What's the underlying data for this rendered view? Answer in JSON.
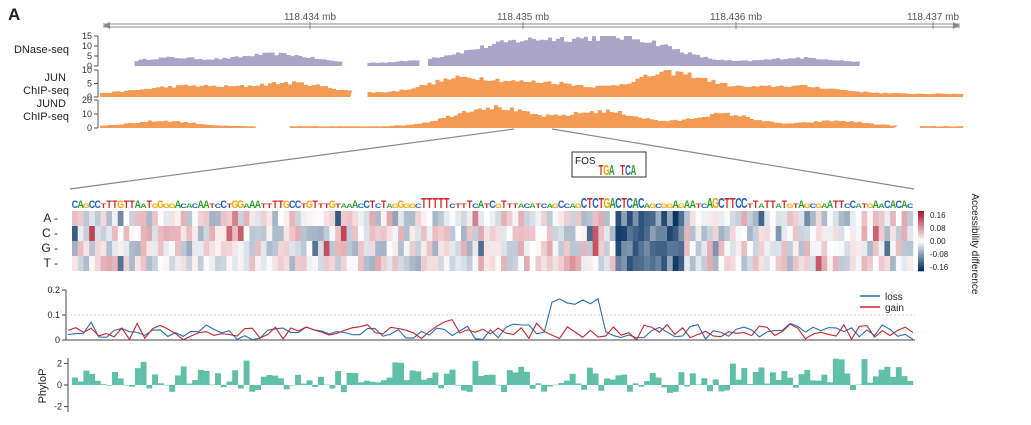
{
  "panel_label": "A",
  "genome_axis": {
    "ticks": [
      "118.434 mb",
      "118.435 mb",
      "118.436 mb",
      "118.437 mb"
    ]
  },
  "motif": {
    "name": "FOS",
    "logo": "TGA TCA"
  },
  "sequence": "CAGCCTTTGTTAATGGGGACACAATCCTGGAAATTTTGCCTGTTTGTAAACCTCTAGGGGCTTTTTCTTTCATCGTTTACATCAGCCAGCTCTGACTCACAGCGGAGAATCAGCTTCCTTATTATGTAGCGAATTCCATGAACACAC",
  "colors": {
    "dnase": "#a9a4c8",
    "chip": "#f39a55",
    "loss": "#2b6cb0",
    "gain": "#c4262e",
    "phylop": "#5fbfa8",
    "A": "#2ca02c",
    "C": "#1f5fbf",
    "G": "#f0a500",
    "T": "#d62728"
  },
  "chart_data": [
    {
      "type": "area",
      "title": "DNase-seq",
      "yticks": [
        "15",
        "10",
        "5",
        "0"
      ],
      "ylim": [
        0,
        15
      ],
      "segments": [
        [
          0.04,
          0.28
        ],
        [
          0.31,
          0.37
        ],
        [
          0.38,
          0.88
        ]
      ],
      "peaks": [
        [
          0.08,
          3,
          0.05
        ],
        [
          0.2,
          5,
          0.06
        ],
        [
          0.5,
          12,
          0.1
        ],
        [
          0.62,
          10,
          0.07
        ],
        [
          0.81,
          3,
          0.06
        ]
      ]
    },
    {
      "type": "area",
      "title": "JUN ChIP-seq",
      "yticks": [
        "10",
        "5",
        "0"
      ],
      "ylim": [
        0,
        10
      ],
      "segments": [
        [
          0.0,
          0.29
        ],
        [
          0.31,
          1.0
        ]
      ],
      "peaks": [
        [
          0.1,
          3,
          0.07
        ],
        [
          0.22,
          4,
          0.06
        ],
        [
          0.42,
          6,
          0.06
        ],
        [
          0.52,
          4,
          0.06
        ],
        [
          0.66,
          8,
          0.06
        ],
        [
          0.8,
          3,
          0.07
        ]
      ]
    },
    {
      "type": "area",
      "title": "JUND ChIP-seq",
      "yticks": [
        "20",
        "10",
        "0"
      ],
      "ylim": [
        0,
        20
      ],
      "segments": [
        [
          0.0,
          0.18
        ],
        [
          0.22,
          0.92
        ],
        [
          0.95,
          1.0
        ]
      ],
      "peaks": [
        [
          0.07,
          4,
          0.05
        ],
        [
          0.45,
          14,
          0.06
        ],
        [
          0.58,
          11,
          0.06
        ],
        [
          0.72,
          9,
          0.05
        ],
        [
          0.85,
          4,
          0.05
        ]
      ]
    },
    {
      "type": "heatmap",
      "rows": [
        "A",
        "C",
        "G",
        "T"
      ],
      "colorbar_label": "Accessibility difference",
      "colorbar_ticks": [
        "0.16",
        "0.08",
        "0.00",
        "-0.08",
        "-0.16"
      ],
      "zlim": [
        -0.16,
        0.16
      ]
    },
    {
      "type": "line",
      "ylim": [
        0,
        0.2
      ],
      "yticks": [
        "0.2",
        "0.1",
        "0"
      ],
      "series": [
        {
          "name": "loss"
        },
        {
          "name": "gain"
        }
      ]
    },
    {
      "type": "bar",
      "ylabel": "PhyloP",
      "ylim": [
        -2.5,
        2.5
      ],
      "yticks": [
        "2",
        "0",
        "-2"
      ]
    }
  ]
}
